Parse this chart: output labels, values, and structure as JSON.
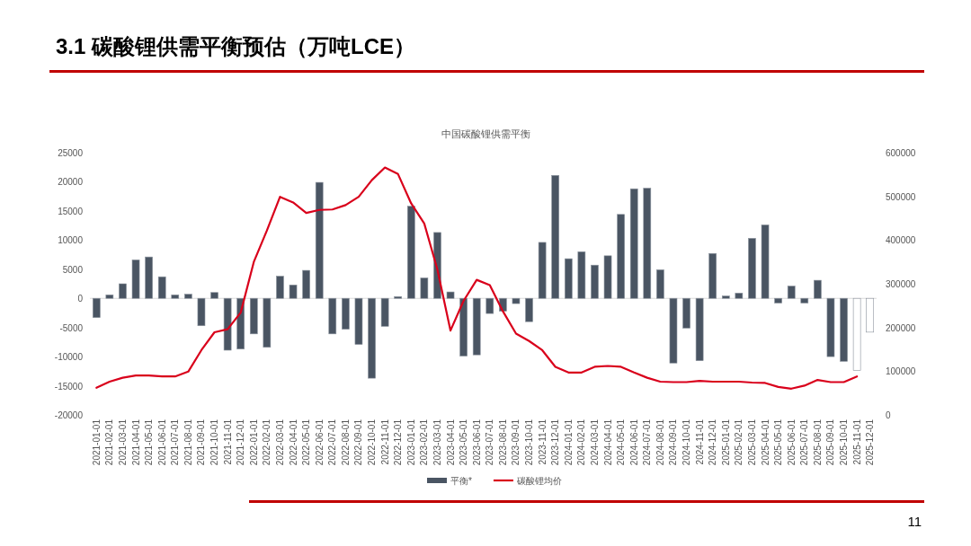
{
  "chart_data": {
    "type": "bar",
    "title": "3.1 碳酸锂供需平衡预估（万吨LCE）",
    "subtitle": "中国碳酸锂供需平衡",
    "categories": [
      "2021-01-01",
      "2021-02-01",
      "2021-03-01",
      "2021-04-01",
      "2021-05-01",
      "2021-06-01",
      "2021-07-01",
      "2021-08-01",
      "2021-09-01",
      "2021-10-01",
      "2021-11-01",
      "2021-12-01",
      "2022-01-01",
      "2022-02-01",
      "2022-03-01",
      "2022-04-01",
      "2022-05-01",
      "2022-06-01",
      "2022-07-01",
      "2022-08-01",
      "2022-09-01",
      "2022-10-01",
      "2022-11-01",
      "2022-12-01",
      "2023-01-01",
      "2023-02-01",
      "2023-03-01",
      "2023-04-01",
      "2023-05-01",
      "2023-06-01",
      "2023-07-01",
      "2023-08-01",
      "2023-09-01",
      "2023-10-01",
      "2023-11-01",
      "2023-12-01",
      "2024-01-01",
      "2024-02-01",
      "2024-03-01",
      "2024-04-01",
      "2024-05-01",
      "2024-06-01",
      "2024-07-01",
      "2024-08-01",
      "2024-09-01",
      "2024-10-01",
      "2024-11-01",
      "2024-12-01",
      "2025-01-01",
      "2025-02-01",
      "2025-03-01",
      "2025-04-01",
      "2025-05-01",
      "2025-06-01",
      "2025-07-01",
      "2025-08-01",
      "2025-09-01",
      "2025-10-01",
      "2025-11-01",
      "2025-12-01"
    ],
    "series": [
      {
        "name": "平衡*",
        "color": "#4a5563",
        "colors": [
          "#4a5563",
          "#4a5563",
          "#4a5563",
          "#4a5563",
          "#4a5563",
          "#4a5563",
          "#4a5563",
          "#4a5563",
          "#4a5563",
          "#4a5563",
          "#4a5563",
          "#4a5563",
          "#4a5563",
          "#4a5563",
          "#4a5563",
          "#4a5563",
          "#4a5563",
          "#4a5563",
          "#4a5563",
          "#4a5563",
          "#4a5563",
          "#4a5563",
          "#4a5563",
          "#4a5563",
          "#4a5563",
          "#4a5563",
          "#4a5563",
          "#4a5563",
          "#4a5563",
          "#4a5563",
          "#4a5563",
          "#4a5563",
          "#4a5563",
          "#4a5563",
          "#4a5563",
          "#4a5563",
          "#4a5563",
          "#4a5563",
          "#4a5563",
          "#4a5563",
          "#4a5563",
          "#4a5563",
          "#4a5563",
          "#4a5563",
          "#4a5563",
          "#4a5563",
          "#4a5563",
          "#4a5563",
          "#4a5563",
          "#4a5563",
          "#4a5563",
          "#4a5563",
          "#4a5563",
          "#4a5563",
          "#4a5563",
          "#4a5563",
          "#4a5563",
          "#4a5563",
          "#ffffff",
          "#ffffff"
        ],
        "values": [
          -3300,
          600,
          2500,
          6600,
          7100,
          3700,
          600,
          700,
          -4700,
          1000,
          -8900,
          -8700,
          -6100,
          -8400,
          3800,
          2300,
          4800,
          19900,
          -6100,
          -5300,
          -7900,
          -13700,
          -4800,
          300,
          15800,
          3500,
          11300,
          1100,
          -9900,
          -9700,
          -2600,
          -2200,
          -900,
          -4000,
          9600,
          21100,
          6800,
          8000,
          5700,
          7300,
          14400,
          18800,
          18900,
          4900,
          -11100,
          -5100,
          -10700,
          7700,
          400,
          900,
          10300,
          12600,
          -800,
          2100,
          -800,
          3100,
          -10000,
          -10800,
          -12400,
          -5800
        ]
      },
      {
        "name": "碳酸锂均价",
        "type": "line",
        "axis": "y2",
        "color": "#d9001b",
        "values": [
          62000,
          76000,
          85000,
          90000,
          90000,
          88000,
          88000,
          99000,
          148000,
          189000,
          196000,
          234000,
          350000,
          422000,
          499000,
          486000,
          462000,
          469000,
          470000,
          480000,
          499000,
          537000,
          566000,
          551000,
          484000,
          438000,
          333000,
          193000,
          261000,
          309000,
          297000,
          237000,
          186000,
          169000,
          148000,
          110000,
          97000,
          97000,
          110000,
          112000,
          110000,
          97000,
          85000,
          76000,
          75000,
          75000,
          78000,
          76000,
          76000,
          76000,
          74000,
          73000,
          64000,
          60000,
          67000,
          80000,
          75000,
          75000,
          88000,
          null
        ]
      }
    ],
    "ylim": [
      -20000,
      25000
    ],
    "yticks": [
      -20000,
      -15000,
      -10000,
      -5000,
      0,
      5000,
      10000,
      15000,
      20000,
      25000
    ],
    "y2lim": [
      0,
      600000
    ],
    "y2ticks": [
      0,
      100000,
      200000,
      300000,
      400000,
      500000,
      600000
    ],
    "legend": "bottom",
    "annotations": [
      "11"
    ]
  }
}
